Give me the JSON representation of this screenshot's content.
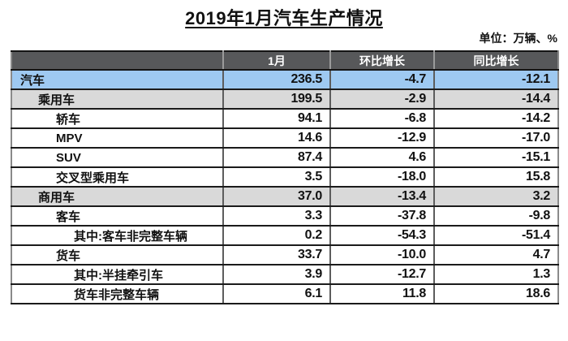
{
  "page": {
    "title": "2019年1月汽车生产情况",
    "unit_label": "单位：万辆、%"
  },
  "colors": {
    "header_bg": "#57585A",
    "header_text": "#FFFFFF",
    "row_highlight_blue": "#9EC9F1",
    "row_highlight_gray": "#D9D9D9",
    "border_horizontal": "#1B1B1B",
    "border_vertical": "#5D5D5D"
  },
  "chart_data": {
    "type": "table",
    "title": "2019年1月汽车生产情况",
    "unit": "万辆、%",
    "columns": [
      "",
      "1月",
      "环比增长",
      "同比增长"
    ],
    "rows": [
      {
        "label": "汽车",
        "values": [
          "236.5",
          "-4.7",
          "-12.1"
        ],
        "indent": 0,
        "style": "blue"
      },
      {
        "label": "乘用车",
        "values": [
          "199.5",
          "-2.9",
          "-14.4"
        ],
        "indent": 1,
        "style": "gray"
      },
      {
        "label": "轿车",
        "values": [
          "94.1",
          "-6.8",
          "-14.2"
        ],
        "indent": 2,
        "style": "white"
      },
      {
        "label": "MPV",
        "values": [
          "14.6",
          "-12.9",
          "-17.0"
        ],
        "indent": 2,
        "style": "white"
      },
      {
        "label": "SUV",
        "values": [
          "87.4",
          "4.6",
          "-15.1"
        ],
        "indent": 2,
        "style": "white"
      },
      {
        "label": "交叉型乘用车",
        "values": [
          "3.5",
          "-18.0",
          "15.8"
        ],
        "indent": 2,
        "style": "white"
      },
      {
        "label": "商用车",
        "values": [
          "37.0",
          "-13.4",
          "3.2"
        ],
        "indent": 1,
        "style": "gray"
      },
      {
        "label": "客车",
        "values": [
          "3.3",
          "-37.8",
          "-9.8"
        ],
        "indent": 2,
        "style": "white"
      },
      {
        "label": "其中:客车非完整车辆",
        "values": [
          "0.2",
          "-54.3",
          "-51.4"
        ],
        "indent": 3,
        "style": "white"
      },
      {
        "label": "货车",
        "values": [
          "33.7",
          "-10.0",
          "4.7"
        ],
        "indent": 2,
        "style": "white"
      },
      {
        "label": "其中:半挂牵引车",
        "values": [
          "3.9",
          "-12.7",
          "1.3"
        ],
        "indent": 3,
        "style": "white"
      },
      {
        "label": "货车非完整车辆",
        "values": [
          "6.1",
          "11.8",
          "18.6"
        ],
        "indent": 3,
        "style": "white"
      }
    ]
  }
}
